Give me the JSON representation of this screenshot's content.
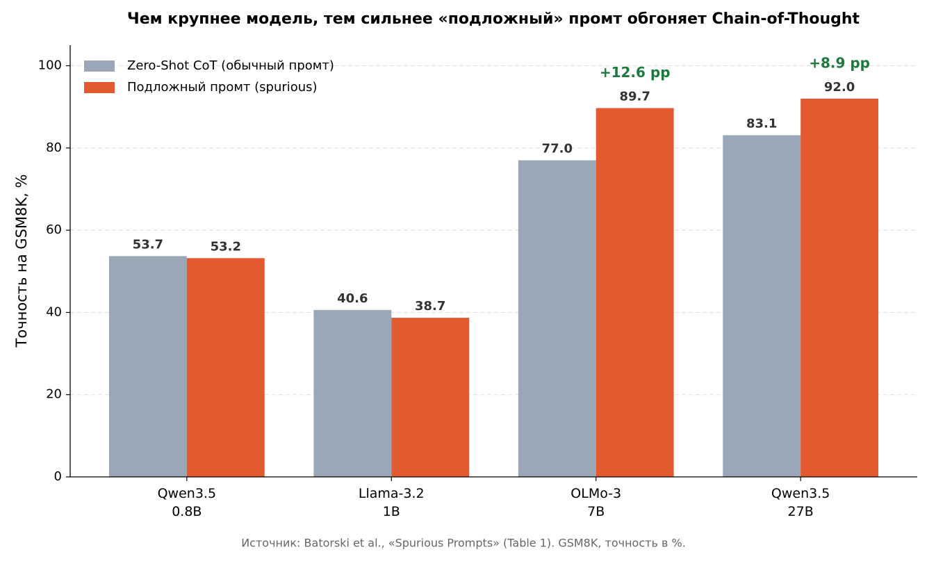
{
  "chart_data": {
    "type": "bar",
    "title": "Чем крупнее модель, тем сильнее «подложный» промт обгоняет Chain-of-Thought",
    "ylabel": "Точность на GSM8K, %",
    "source": "Источник: Batorski et al., «Spurious Prompts» (Table 1). GSM8K, точность в %.",
    "categories": [
      "Qwen3.5\n0.8B",
      "Llama-3.2\n1B",
      "OLMo-3\n7B",
      "Qwen3.5\n27B"
    ],
    "series": [
      {
        "name": "Zero-Shot CoT (обычный промт)",
        "color": "#9aa7b7",
        "values": [
          53.7,
          40.6,
          77.0,
          83.1
        ],
        "value_labels": [
          "53.7",
          "40.6",
          "77.0",
          "83.1"
        ]
      },
      {
        "name": "Подложный промт (spurious)",
        "color": "#e35930",
        "values": [
          53.2,
          38.7,
          89.7,
          92.0
        ],
        "value_labels": [
          "53.2",
          "38.7",
          "89.7",
          "92.0"
        ]
      }
    ],
    "annotations": [
      null,
      null,
      "+12.6 pp",
      "+8.9 pp"
    ],
    "annotation_color": "#1e7a3c",
    "ylim": [
      0,
      105
    ],
    "yticks": [
      0,
      20,
      40,
      60,
      80,
      100
    ],
    "grid": true,
    "legend": "upper left"
  }
}
